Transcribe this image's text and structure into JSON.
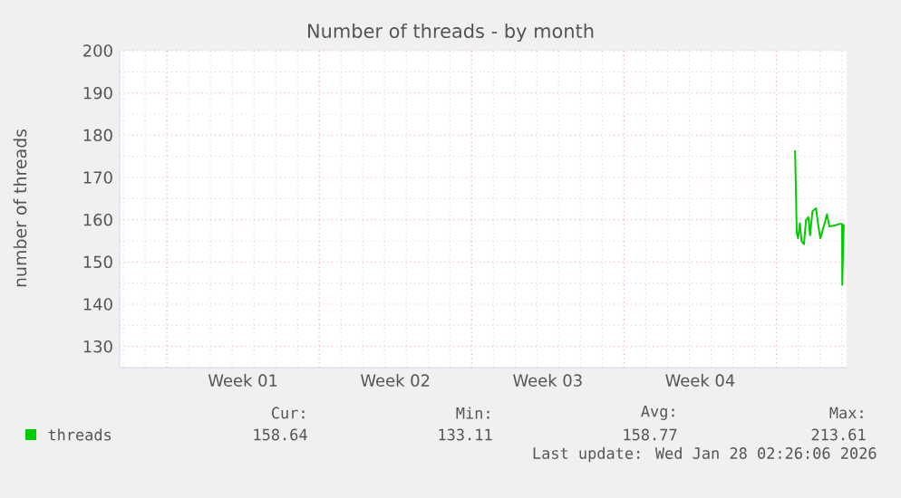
{
  "chart_data": {
    "type": "line",
    "title": "Number of threads - by month",
    "ylabel": "number of threads",
    "xlim": [
      "2025-12-25T20:00",
      "2026-01-28T05:30"
    ],
    "ylim": [
      125,
      200
    ],
    "xticks": [
      {
        "value": "2025-12-28T00:00",
        "label": null
      },
      {
        "value": "2025-12-31T12:00",
        "label": "Week 01"
      },
      {
        "value": "2026-01-04T00:00",
        "label": null
      },
      {
        "value": "2026-01-07T12:00",
        "label": "Week 02"
      },
      {
        "value": "2026-01-11T00:00",
        "label": null
      },
      {
        "value": "2026-01-14T12:00",
        "label": "Week 03"
      },
      {
        "value": "2026-01-18T00:00",
        "label": null
      },
      {
        "value": "2026-01-21T12:00",
        "label": "Week 04"
      },
      {
        "value": "2026-01-25T00:00",
        "label": null
      }
    ],
    "yticks": [
      130,
      140,
      150,
      160,
      170,
      180,
      190,
      200
    ],
    "grid": true,
    "legend": "bottom left",
    "marker": "none",
    "line_style": "solid",
    "series": [
      {
        "name": "threads",
        "color": "#00cc00",
        "x": [
          "2026-01-25T20:40",
          "2026-01-25T22:30",
          "2026-01-26T00:00",
          "2026-01-26T02:00",
          "2026-01-26T03:50",
          "2026-01-26T06:30",
          "2026-01-26T08:40",
          "2026-01-26T11:20",
          "2026-01-26T13:10",
          "2026-01-26T15:50",
          "2026-01-26T19:50",
          "2026-01-26T21:50",
          "2026-01-27T00:30",
          "2026-01-27T03:20",
          "2026-01-27T05:20",
          "2026-01-27T07:50",
          "2026-01-27T10:30",
          "2026-01-27T17:20",
          "2026-01-27T21:20",
          "2026-01-28T00:30",
          "2026-01-28T00:40",
          "2026-01-28T02:20"
        ],
        "values": [
          176.4,
          157.0,
          155.6,
          159.2,
          154.9,
          154.2,
          159.9,
          160.6,
          156.3,
          162.0,
          162.7,
          159.2,
          155.6,
          157.7,
          159.2,
          161.3,
          158.4,
          158.7,
          159.0,
          159.0,
          144.6,
          158.9
        ]
      }
    ],
    "annotations": [
      "Cur:",
      "158.64",
      "Min:",
      "133.11",
      "Avg:",
      "158.77",
      "Max:",
      "213.61",
      "Last update: Wed Jan 28 02:26:06 2026"
    ]
  }
}
